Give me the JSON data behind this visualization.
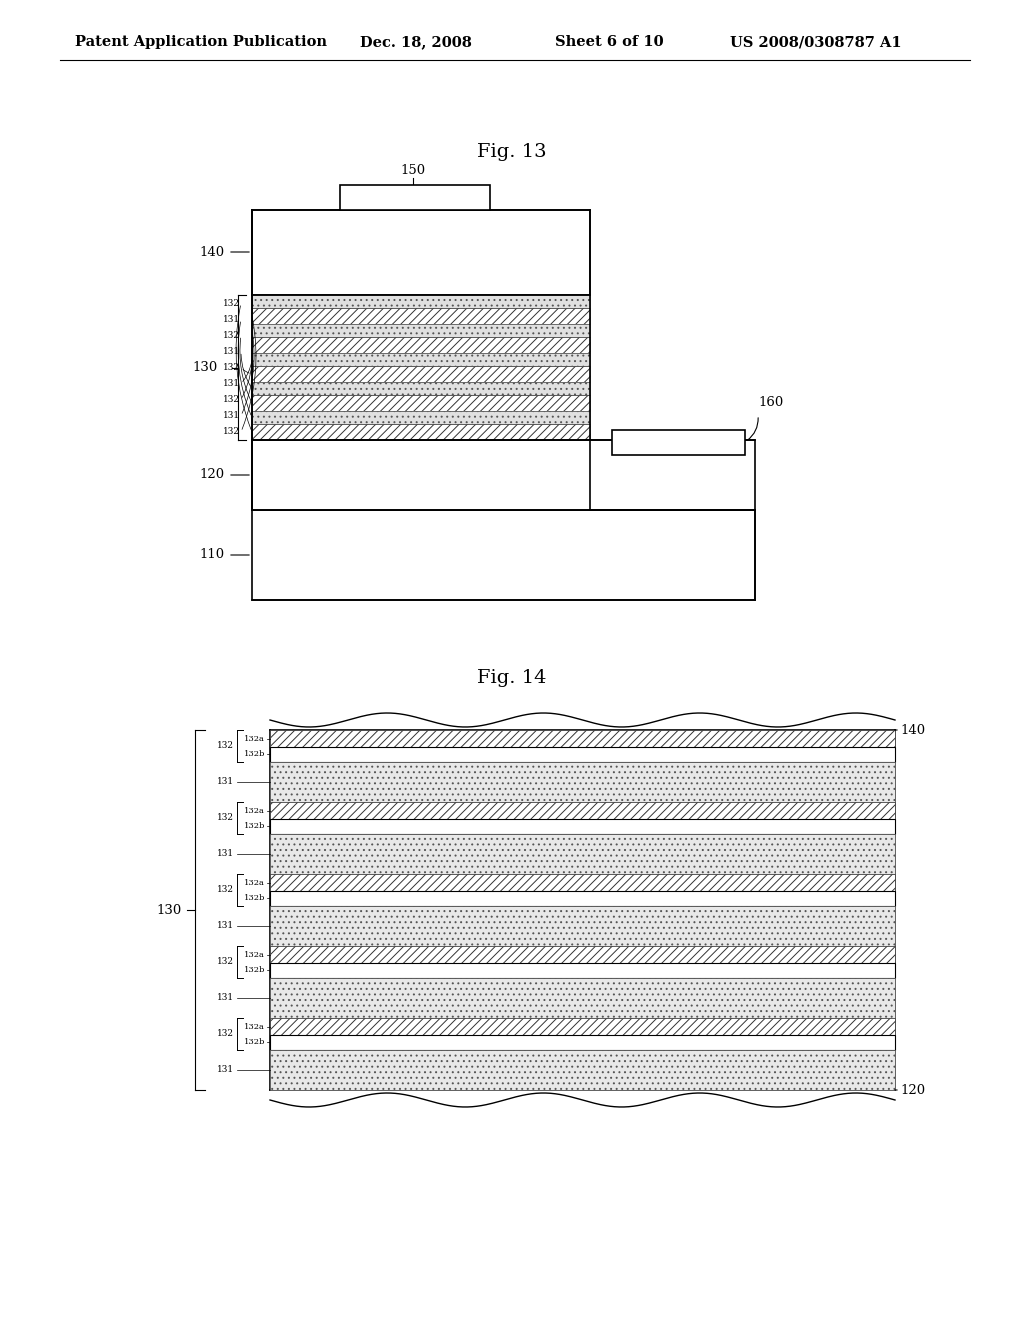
{
  "bg_color": "#ffffff",
  "header_text": "Patent Application Publication",
  "header_date": "Dec. 18, 2008",
  "header_sheet": "Sheet 6 of 10",
  "header_patent": "US 2008/0308787 A1",
  "fig13_title": "Fig. 13",
  "fig14_title": "Fig. 14",
  "lw_main": 1.2,
  "lw_layer": 0.8,
  "ec": "#000000",
  "hatch_color": "#000000",
  "dot_fill": "#d8d8d8",
  "white_fill": "#ffffff"
}
